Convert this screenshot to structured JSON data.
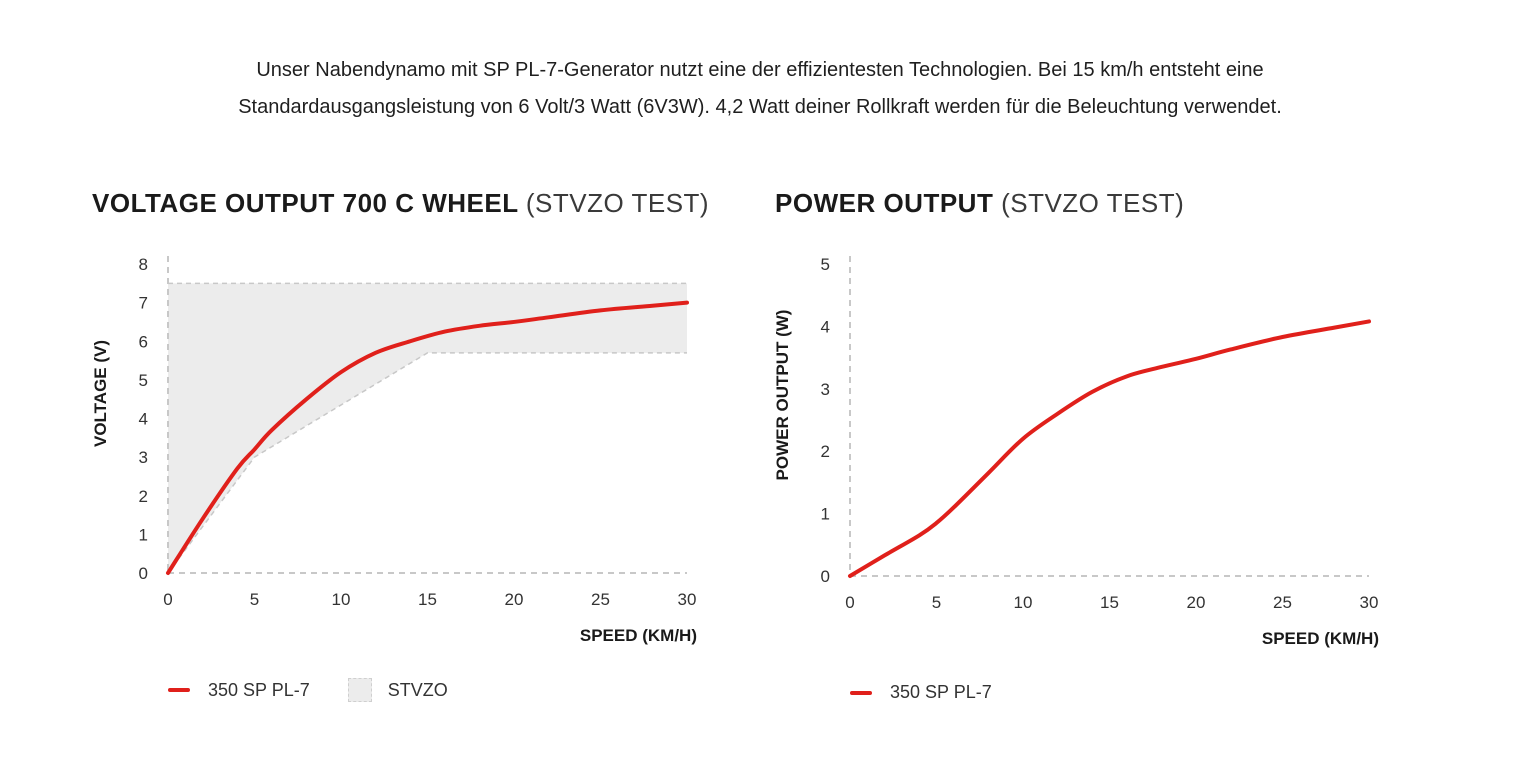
{
  "intro": {
    "text": "Unser Nabendynamo mit SP PL-7-Generator nutzt eine der effizientesten Technologien. Bei 15 km/h entsteht eine Standardausgangsleistung von 6 Volt/3 Watt (6V3W). 4,2 Watt deiner Rollkraft werden für die Beleuchtung verwendet."
  },
  "colors": {
    "series": "#e0201b",
    "band": "#ececec",
    "grid": "#c8c8c8"
  },
  "chart_data": [
    {
      "type": "line",
      "title": "VOLTAGE OUTPUT 700 C WHEEL",
      "subtitle": "(STVZO TEST)",
      "xlabel": "SPEED (KM/H)",
      "ylabel": "VOLTAGE (V)",
      "xlim": [
        0,
        30
      ],
      "ylim": [
        0,
        8
      ],
      "xticks": [
        0,
        5,
        10,
        15,
        20,
        25,
        30
      ],
      "yticks": [
        0,
        1,
        2,
        3,
        4,
        5,
        6,
        7,
        8
      ],
      "series": [
        {
          "name": "350 SP PL-7",
          "color": "#e0201b",
          "x": [
            0,
            2,
            4,
            5,
            6,
            8,
            10,
            12,
            14,
            16,
            18,
            20,
            22,
            25,
            28,
            30
          ],
          "y": [
            0,
            1.4,
            2.7,
            3.2,
            3.7,
            4.5,
            5.2,
            5.7,
            6.0,
            6.25,
            6.4,
            6.5,
            6.62,
            6.8,
            6.92,
            7.0
          ]
        }
      ],
      "band": {
        "name": "STVZO",
        "upper": {
          "x": [
            0,
            30
          ],
          "y": [
            7.5,
            7.5
          ]
        },
        "lower": {
          "x": [
            0,
            5,
            15,
            30
          ],
          "y": [
            0,
            3.0,
            5.7,
            5.7
          ]
        }
      },
      "legend": {
        "placement": "bottom-left",
        "entries": [
          "350 SP PL-7",
          "STVZO"
        ]
      }
    },
    {
      "type": "line",
      "title": "POWER OUTPUT",
      "subtitle": "(STVZO TEST)",
      "xlabel": "SPEED (KM/H)",
      "ylabel": "POWER OUTPUT (W)",
      "xlim": [
        0,
        30
      ],
      "ylim": [
        0,
        5
      ],
      "xticks": [
        0,
        5,
        10,
        15,
        20,
        25,
        30
      ],
      "yticks": [
        0,
        1,
        2,
        3,
        4,
        5
      ],
      "series": [
        {
          "name": "350 SP PL-7",
          "color": "#e0201b",
          "x": [
            0,
            2,
            4,
            5,
            6,
            8,
            10,
            12,
            14,
            16,
            18,
            20,
            22,
            25,
            28,
            30
          ],
          "y": [
            0,
            0.33,
            0.65,
            0.85,
            1.1,
            1.65,
            2.2,
            2.6,
            2.95,
            3.2,
            3.35,
            3.48,
            3.63,
            3.83,
            3.98,
            4.08
          ]
        }
      ],
      "legend": {
        "placement": "bottom-left",
        "entries": [
          "350 SP PL-7"
        ]
      }
    }
  ]
}
